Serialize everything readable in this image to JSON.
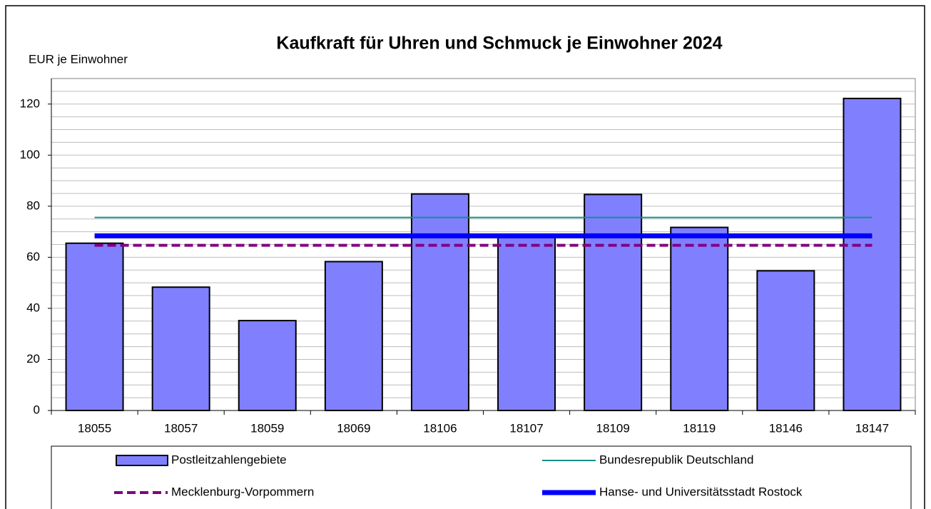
{
  "chart_data": {
    "type": "bar",
    "title": "Kaufkraft für Uhren und Schmuck je Einwohner 2024",
    "y_label": "EUR je Einwohner",
    "categories": [
      "18055",
      "18057",
      "18059",
      "18069",
      "18106",
      "18107",
      "18109",
      "18119",
      "18146",
      "18147"
    ],
    "series": [
      {
        "name": "Postleitzahlengebiete",
        "color": "#8080ff",
        "values": [
          65.5,
          48.3,
          35.2,
          58.3,
          84.8,
          68,
          84.6,
          71.7,
          54.7,
          122.2
        ]
      }
    ],
    "lines": [
      {
        "name": "Bundesrepublik Deutschland",
        "color": "#14908a",
        "value": 75.6,
        "linestyle": "solid"
      },
      {
        "name": "Mecklenburg-Vorpommern",
        "color": "#800080",
        "value": 64.7,
        "linestyle": "dashed"
      },
      {
        "name": "Hanse- und Universitätsstadt Rostock",
        "color": "#0000ff",
        "value": 68.4,
        "linestyle": "solid"
      }
    ],
    "ylim": [
      0,
      130
    ],
    "yticks": [
      0,
      20,
      40,
      60,
      80,
      100,
      120
    ],
    "ygrid": [
      5,
      10,
      15,
      20,
      25,
      30,
      35,
      40,
      45,
      50,
      55,
      60,
      65,
      70,
      75,
      80,
      85,
      90,
      95,
      100,
      105,
      110,
      115,
      120,
      125
    ],
    "grid": true
  }
}
